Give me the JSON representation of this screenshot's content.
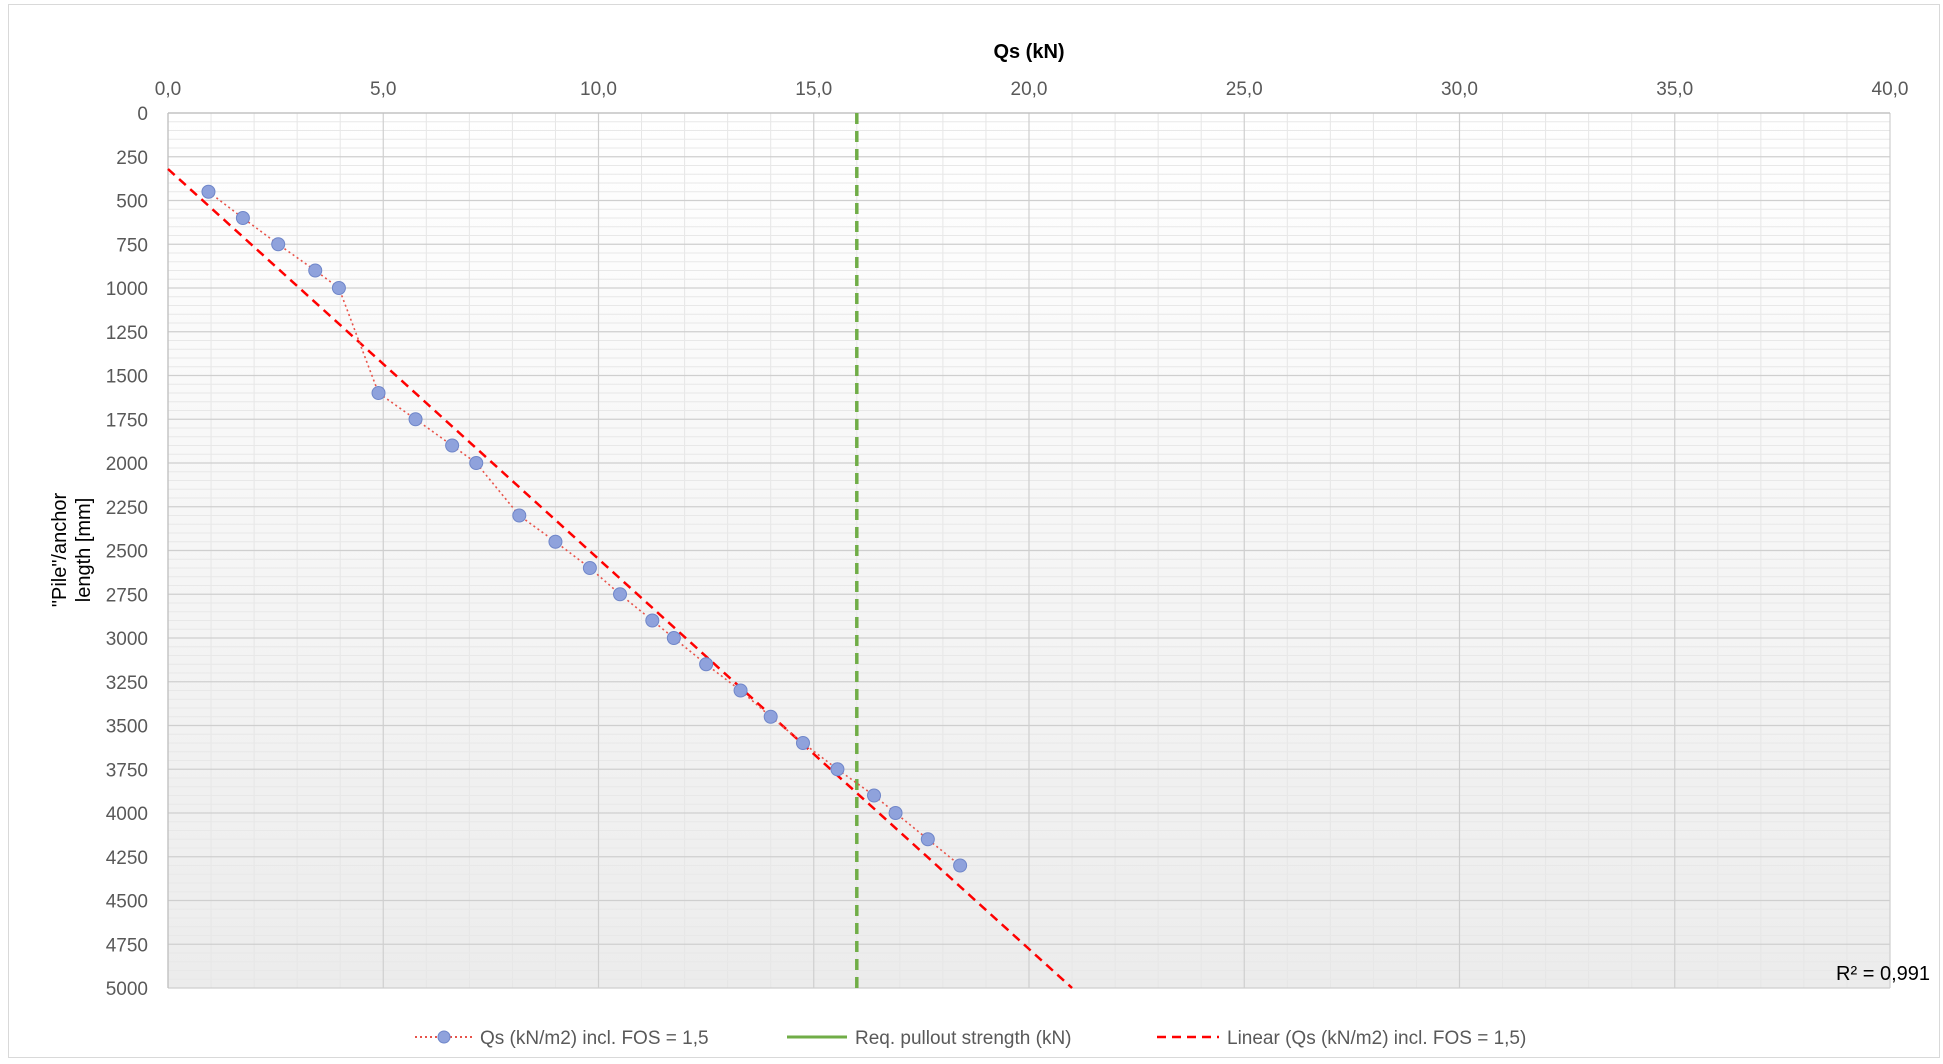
{
  "chart_data": {
    "type": "scatter",
    "xlabel": "Qs (kN)",
    "ylabel_lines": [
      "\"Pile\"/anchor",
      "length [mm]"
    ],
    "xlim": [
      0,
      40
    ],
    "ylim": [
      0,
      5000
    ],
    "y_inverted": true,
    "x_axis_position": "top",
    "x_ticks": [
      0,
      5,
      10,
      15,
      20,
      25,
      30,
      35,
      40
    ],
    "x_tick_labels": [
      "0,0",
      "5,0",
      "10,0",
      "15,0",
      "20,0",
      "25,0",
      "30,0",
      "35,0",
      "40,0"
    ],
    "y_ticks": [
      0,
      250,
      500,
      750,
      1000,
      1250,
      1500,
      1750,
      2000,
      2250,
      2500,
      2750,
      3000,
      3250,
      3500,
      3750,
      4000,
      4250,
      4500,
      4750,
      5000
    ],
    "y_tick_labels": [
      "0",
      "250",
      "500",
      "750",
      "1000",
      "1250",
      "1500",
      "1750",
      "2000",
      "2250",
      "2500",
      "2750",
      "3000",
      "3250",
      "3500",
      "3750",
      "4000",
      "4250",
      "4500",
      "4750",
      "5000"
    ],
    "grid": true,
    "legend_position": "bottom",
    "series": [
      {
        "name": "Qs (kN/m2) incl. FOS = 1,5",
        "style": "dotted-line-with-markers",
        "line_color": "#e8534a",
        "marker_color": "#8fa2dc",
        "x": [
          0.94,
          1.74,
          2.56,
          3.42,
          3.97,
          4.89,
          5.75,
          6.6,
          7.16,
          8.16,
          9.0,
          9.8,
          10.5,
          11.25,
          11.75,
          12.5,
          13.3,
          14.0,
          14.75,
          15.55,
          16.4,
          16.9,
          17.65,
          18.4
        ],
        "y": [
          450,
          600,
          750,
          900,
          1000,
          1600,
          1750,
          1900,
          2000,
          2300,
          2450,
          2600,
          2750,
          2900,
          3000,
          3150,
          3300,
          3450,
          3600,
          3750,
          3900,
          4000,
          4150,
          4300
        ]
      },
      {
        "name": "Req. pullout strength (kN)",
        "style": "vertical-dashed",
        "color": "#70ad47",
        "x_value": 16
      },
      {
        "name": "Linear (Qs (kN/m2) incl. FOS = 1,5)",
        "style": "dashed-trendline",
        "color": "#ff0000",
        "x_start": 0,
        "y_start": 320,
        "x_end": 21,
        "y_end": 5000
      }
    ],
    "annotation": "R² = 0,991",
    "legend_line_style_labels": [
      "Qs (kN/m2) incl. FOS = 1,5",
      "Req. pullout strength (kN)",
      "Linear (Qs (kN/m2) incl. FOS = 1,5)"
    ]
  }
}
